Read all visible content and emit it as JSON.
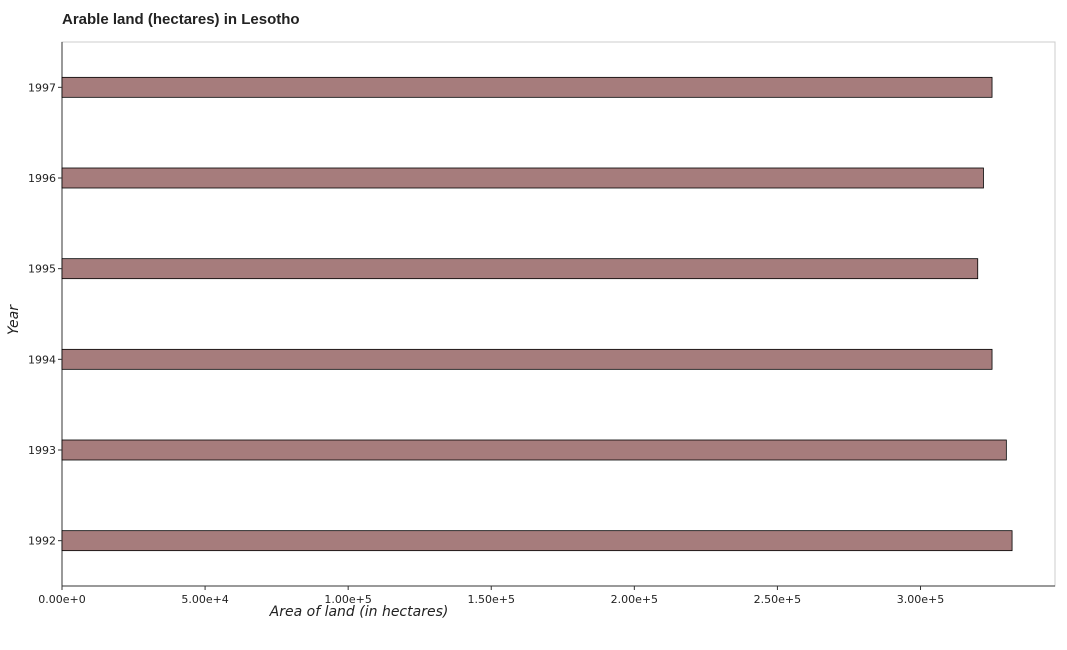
{
  "chart_data": {
    "type": "bar",
    "orientation": "horizontal",
    "title": "Arable land (hectares) in Lesotho",
    "xlabel": "Area of land (in hectares)",
    "ylabel": "Year",
    "categories": [
      "1992",
      "1993",
      "1994",
      "1995",
      "1996",
      "1997"
    ],
    "values": [
      332000,
      330000,
      325000,
      320000,
      322000,
      325000
    ],
    "xlim": [
      0,
      347000
    ],
    "x_ticks": [
      0,
      50000,
      100000,
      150000,
      200000,
      250000,
      300000
    ],
    "x_tick_labels": [
      "0.00e+0",
      "5.00e+4",
      "1.00e+5",
      "1.50e+5",
      "2.00e+5",
      "2.50e+5",
      "3.00e+5"
    ],
    "bar_color": "#a67c7c",
    "bar_edge_color": "#000000",
    "grid": false,
    "legend": "none"
  }
}
